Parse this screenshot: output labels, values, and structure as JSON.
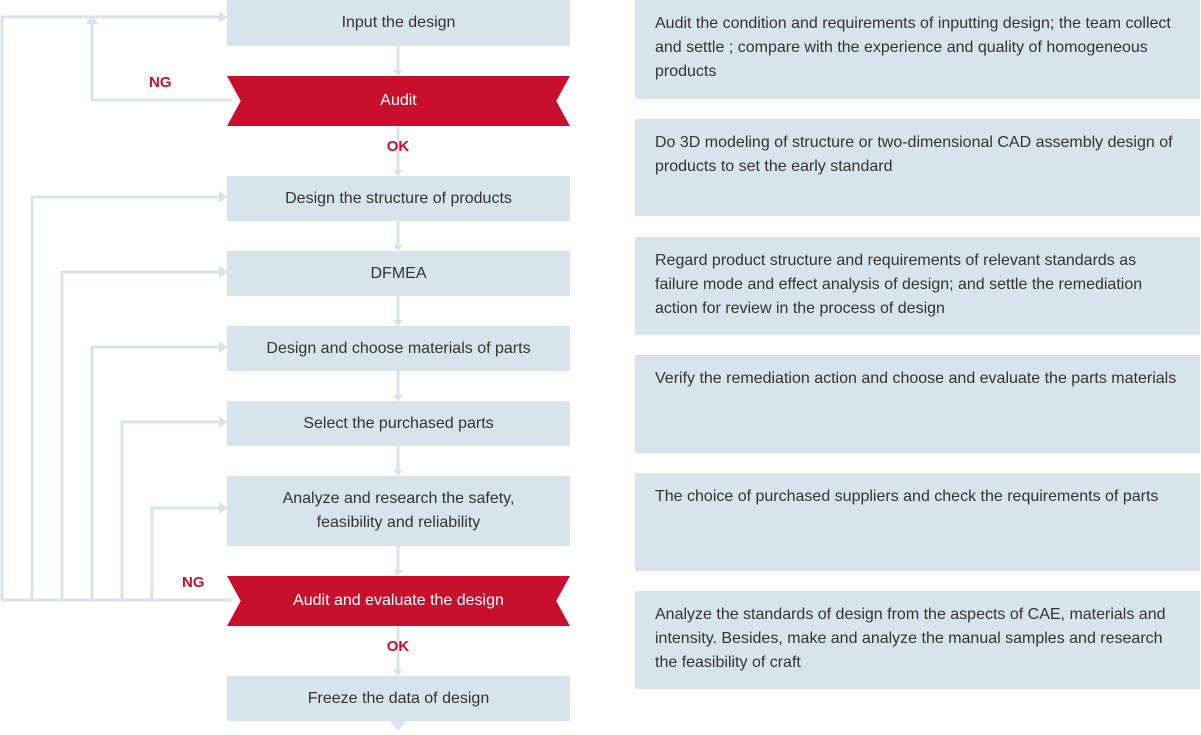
{
  "flow": {
    "steps": {
      "input_design": "Input the design",
      "design_structure": "Design the structure of products",
      "dfmea": "DFMEA",
      "choose_materials": "Design and choose materials of parts",
      "select_parts": "Select the purchased parts",
      "analyze_research": "Analyze and research the safety, feasibility and reliability",
      "freeze_data": "Freeze the data of design"
    },
    "decisions": {
      "audit": "Audit",
      "audit_evaluate": "Audit and evaluate the design"
    },
    "labels": {
      "ng": "NG",
      "ok": "OK"
    }
  },
  "notes": [
    "Audit the condition and requirements of inputting design; the team collect and settle ; compare with the experience and quality of homogeneous products",
    "Do 3D modeling of structure or two-dimensional CAD assembly design of products to set the early standard",
    "Regard product structure and requirements of relevant standards as failure mode and effect analysis of design; and settle the remediation action for review in the process of design",
    "Verify the remediation action and choose and evaluate the parts materials",
    "The choice of purchased suppliers and check the requirements of parts",
    "Analyze the standards of design from the aspects of CAE, materials and intensity. Besides, make and analyze the manual samples and research the feasibility of craft"
  ],
  "colors": {
    "box_fill": "#d8e4ec",
    "decision_fill": "#c8102e",
    "label_red": "#c8102e",
    "connector": "#d8e4ec"
  }
}
